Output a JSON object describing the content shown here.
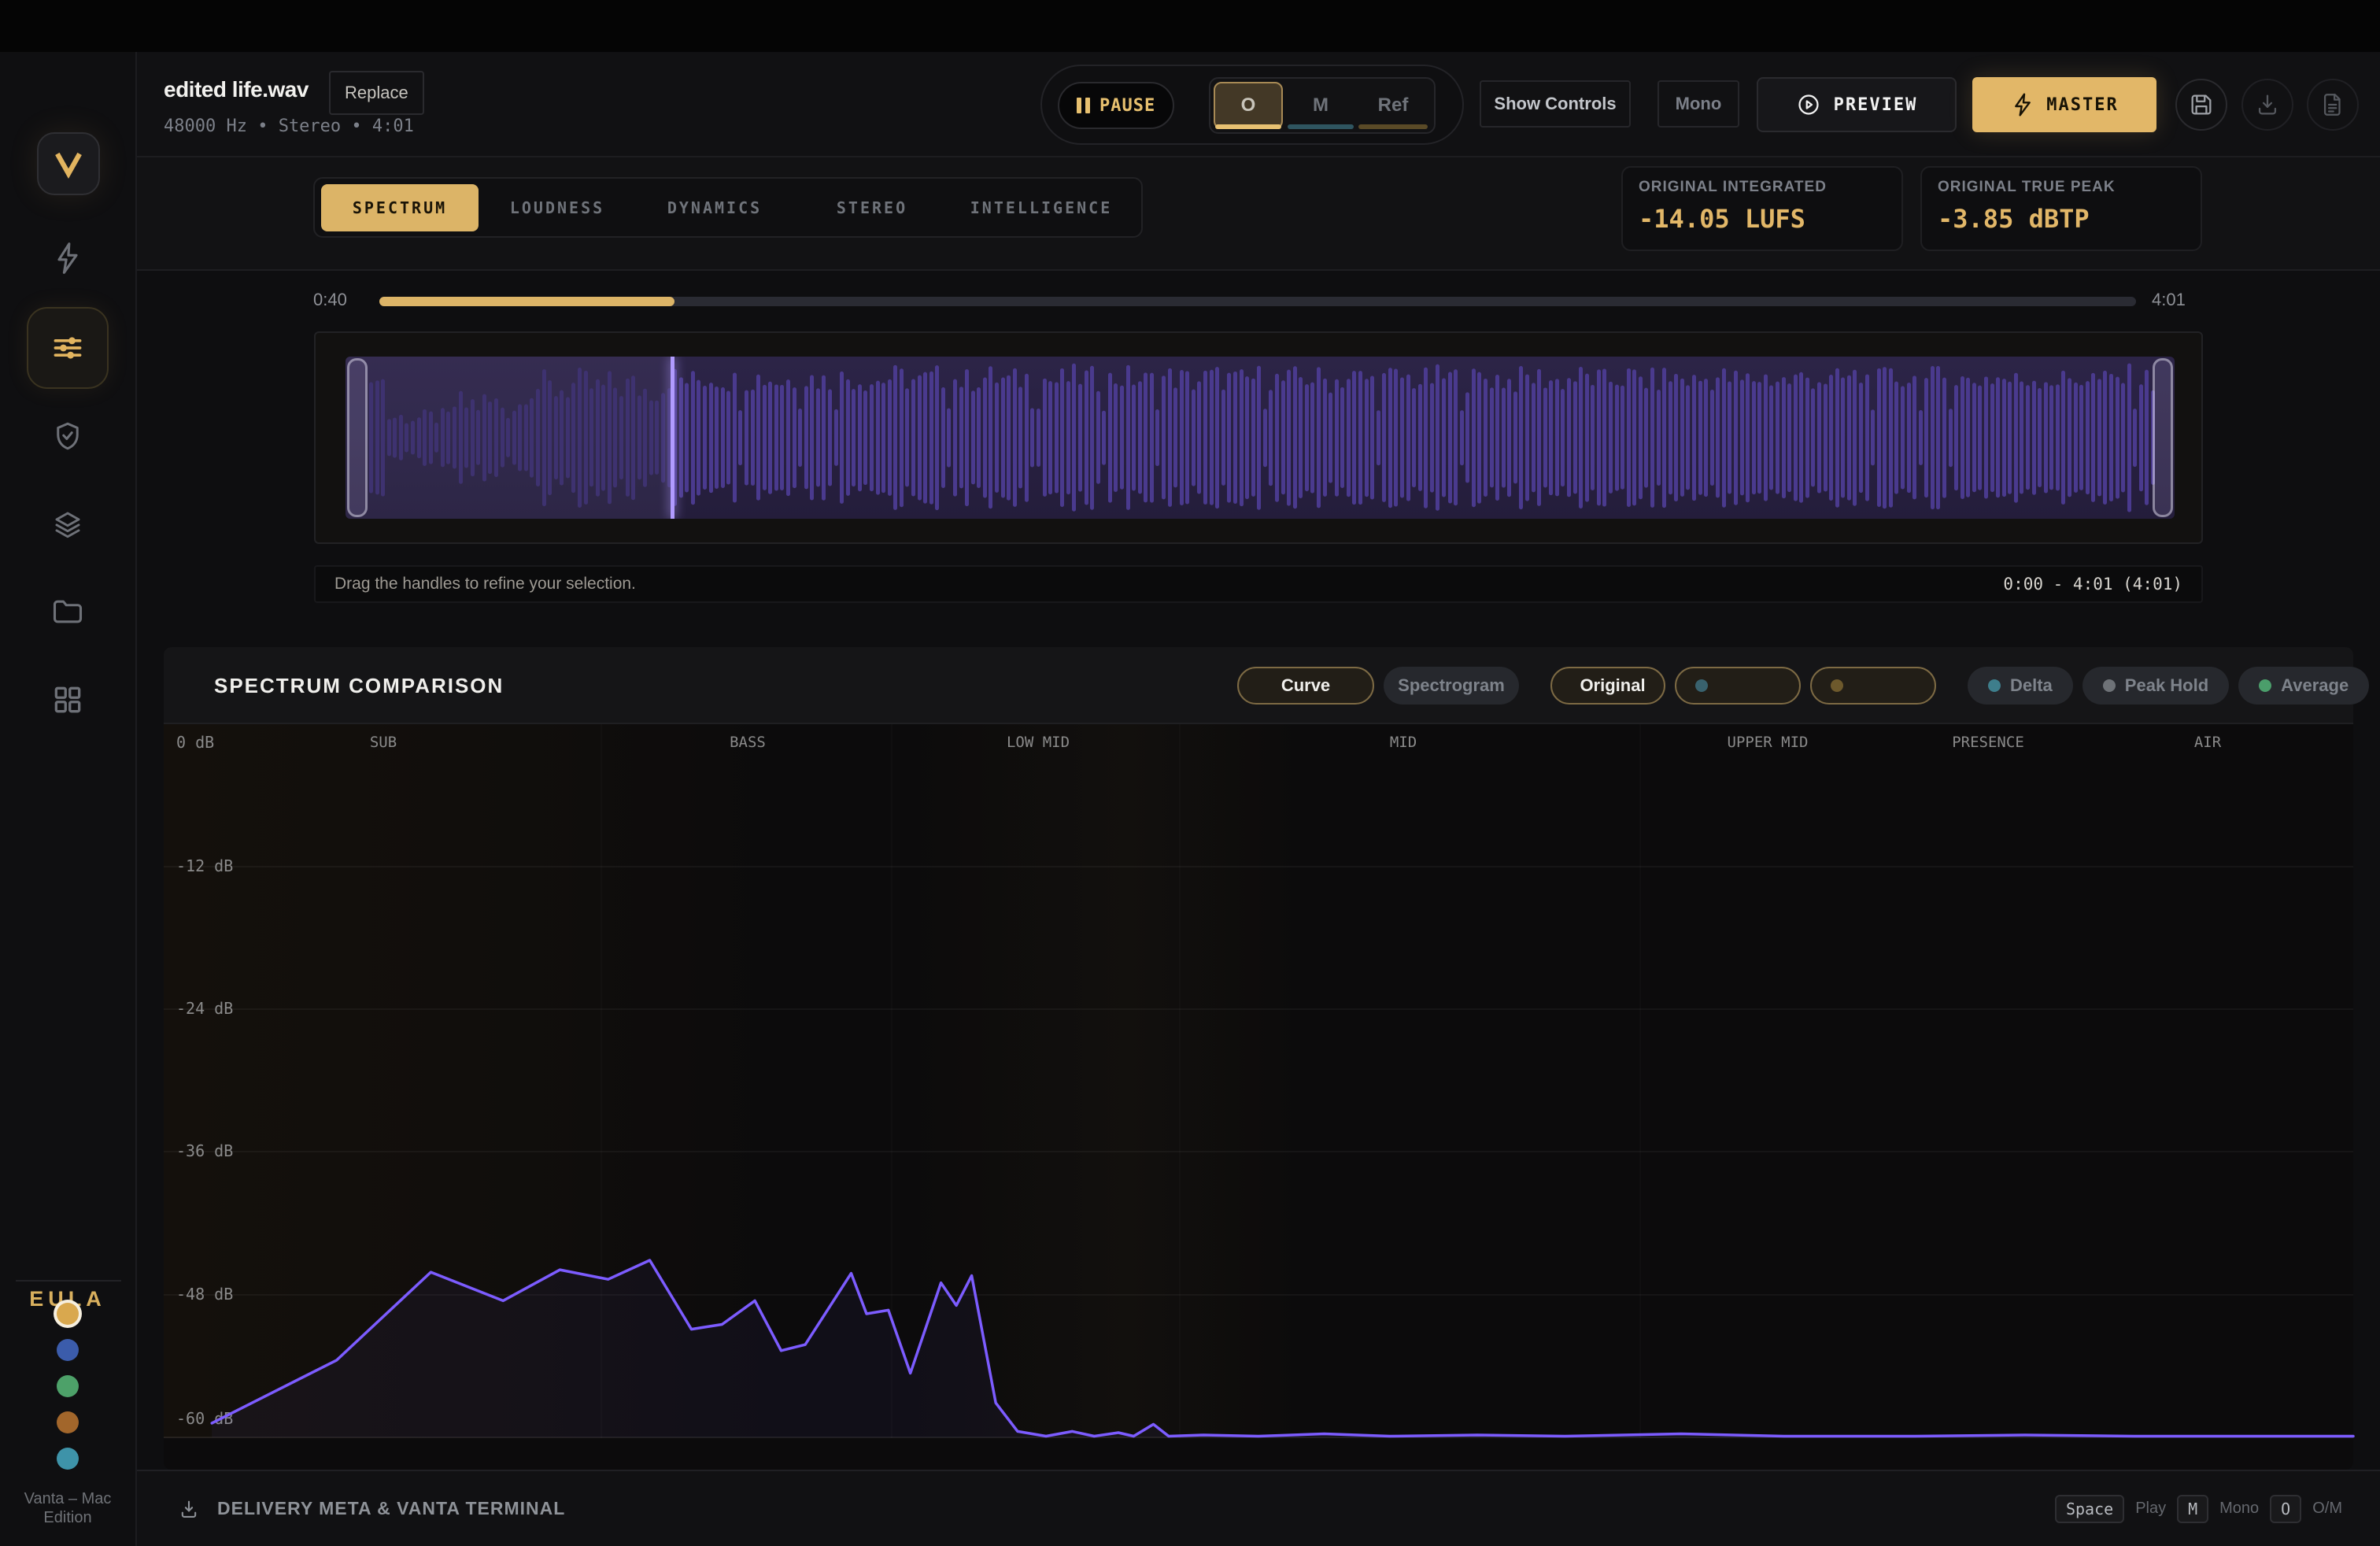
{
  "accent": "#e8c172",
  "sidebar": {
    "eula_label": "EULA",
    "edition_line1": "Vanta – Mac",
    "edition_line2": "Edition",
    "palette": {
      "gold": "#d9a84e",
      "blue": "#3b5cab",
      "green": "#4da169",
      "orange": "#a2662b",
      "teal": "#3e93a9"
    }
  },
  "header": {
    "filename": "edited life.wav",
    "replace_label": "Replace",
    "file_meta": "48000 Hz • Stereo • 4:01",
    "pause_label": "PAUSE",
    "segment_o": "O",
    "segment_m": "M",
    "segment_ref": "Ref",
    "show_controls_label": "Show Controls",
    "mono_label": "Mono",
    "preview_label": "PREVIEW",
    "master_label": "MASTER"
  },
  "tabs": {
    "items": [
      "SPECTRUM",
      "LOUDNESS",
      "DYNAMICS",
      "STEREO",
      "INTELLIGENCE"
    ]
  },
  "metrics": {
    "integrated_label": "ORIGINAL INTEGRATED",
    "integrated_value": "-14.05 LUFS",
    "true_peak_label": "ORIGINAL TRUE PEAK",
    "true_peak_value": "-3.85 dBTP"
  },
  "timeline": {
    "elapsed": "0:40",
    "duration": "4:01",
    "progress_pct": 16.8
  },
  "waveform": {
    "hint": "Drag the handles to refine your selection.",
    "selection_range": "0:00 - 4:01 (4:01)",
    "playhead_pct": 16.9
  },
  "comparison": {
    "title": "SPECTRUM COMPARISON",
    "curve_label": "Curve",
    "spectrogram_label": "Spectrogram",
    "original_label": "Original",
    "delta_label": "Delta",
    "peak_hold_label": "Peak Hold",
    "average_label": "Average",
    "colors": {
      "original": "#8b5cf6",
      "slot2": "#39626e",
      "slot3": "#6d592c",
      "delta": "#3e7e8c",
      "peak_hold": "#6e7277",
      "average": "#4b9e6b"
    }
  },
  "chart_data": {
    "type": "line",
    "title": "Spectrum Comparison — Original curve",
    "ylabel": "dB",
    "ylim": [
      -64,
      0
    ],
    "grid": true,
    "y_ticks": [
      "0 dB",
      "-12 dB",
      "-24 dB",
      "-36 dB",
      "-48 dB",
      "-60 dB"
    ],
    "y_tick_values": [
      0,
      -12,
      -24,
      -36,
      -48,
      -60
    ],
    "band_labels": [
      "SUB",
      "BASS",
      "LOW MID",
      "MID",
      "UPPER MID",
      "PRESENCE",
      "AIR"
    ],
    "floor_db": -60,
    "series": [
      {
        "name": "Original",
        "color": "#7c5cff",
        "points": [
          [
            2.2,
            -58.8
          ],
          [
            7.9,
            -53.5
          ],
          [
            12.2,
            -46.1
          ],
          [
            15.5,
            -48.5
          ],
          [
            18.1,
            -45.9
          ],
          [
            20.3,
            -46.7
          ],
          [
            22.2,
            -45.1
          ],
          [
            24.1,
            -50.9
          ],
          [
            25.5,
            -50.5
          ],
          [
            27.0,
            -48.5
          ],
          [
            28.2,
            -52.7
          ],
          [
            29.3,
            -52.2
          ],
          [
            31.4,
            -46.2
          ],
          [
            32.1,
            -49.6
          ],
          [
            33.1,
            -49.3
          ],
          [
            34.1,
            -54.6
          ],
          [
            35.5,
            -47.0
          ],
          [
            36.2,
            -48.9
          ],
          [
            36.9,
            -46.4
          ],
          [
            38.0,
            -57.1
          ],
          [
            39.0,
            -59.5
          ],
          [
            40.3,
            -59.9
          ],
          [
            41.5,
            -59.5
          ],
          [
            42.5,
            -59.9
          ],
          [
            43.6,
            -59.6
          ],
          [
            44.3,
            -59.9
          ],
          [
            45.2,
            -58.9
          ],
          [
            45.9,
            -59.9
          ],
          [
            47.5,
            -59.8
          ],
          [
            50.0,
            -59.9
          ],
          [
            53.0,
            -59.7
          ],
          [
            56.0,
            -59.9
          ],
          [
            60.0,
            -59.8
          ],
          [
            64.0,
            -59.9
          ],
          [
            69.3,
            -59.7
          ],
          [
            74.0,
            -59.9
          ],
          [
            80.0,
            -59.9
          ],
          [
            85.0,
            -59.8
          ],
          [
            90.0,
            -59.9
          ],
          [
            95.0,
            -59.9
          ],
          [
            100.0,
            -59.9
          ]
        ]
      }
    ]
  },
  "footer": {
    "title": "DELIVERY META & VANTA TERMINAL",
    "shortcuts": [
      {
        "key": "Space",
        "action": "Play"
      },
      {
        "key": "M",
        "action": "Mono"
      },
      {
        "key": "O",
        "action": "O/M"
      }
    ]
  }
}
